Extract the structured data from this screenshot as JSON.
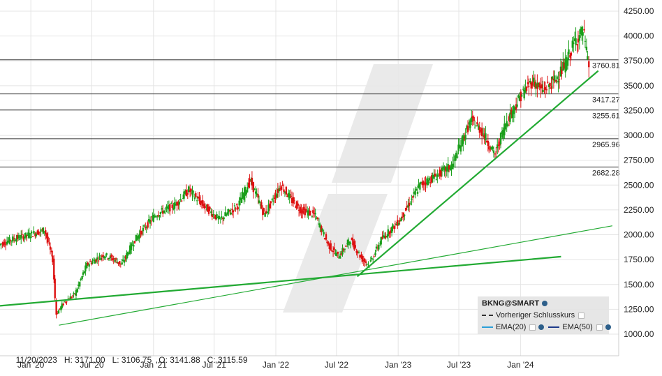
{
  "chart_data": {
    "type": "candlestick",
    "symbol": "BKNG@SMART",
    "x_ticks": [
      "Jan '20",
      "Jul '20",
      "Jan '21",
      "Jul '21",
      "Jan '22",
      "Jul '22",
      "Jan '23",
      "Jul '23",
      "Jan '24"
    ],
    "y_ticks": [
      "4250.00",
      "4000.00",
      "3750.00",
      "3500.00",
      "3250.00",
      "3000.00",
      "2750.00",
      "2500.00",
      "2250.00",
      "2000.00",
      "1750.00",
      "1500.00",
      "1250.00",
      "1000.00"
    ],
    "ylim": [
      900,
      4320
    ],
    "price_path": [
      [
        "2019-10-01",
        1900
      ],
      [
        "2019-11-15",
        1960
      ],
      [
        "2020-01-01",
        2000
      ],
      [
        "2020-02-15",
        2050
      ],
      [
        "2020-03-10",
        1750
      ],
      [
        "2020-03-20",
        1200
      ],
      [
        "2020-04-15",
        1330
      ],
      [
        "2020-05-15",
        1400
      ],
      [
        "2020-06-20",
        1700
      ],
      [
        "2020-08-10",
        1800
      ],
      [
        "2020-09-10",
        1750
      ],
      [
        "2020-10-01",
        1700
      ],
      [
        "2020-11-10",
        1950
      ],
      [
        "2021-01-10",
        2200
      ],
      [
        "2021-03-10",
        2300
      ],
      [
        "2021-04-20",
        2450
      ],
      [
        "2021-06-01",
        2300
      ],
      [
        "2021-07-20",
        2150
      ],
      [
        "2021-09-15",
        2300
      ],
      [
        "2021-10-20",
        2550
      ],
      [
        "2021-12-01",
        2200
      ],
      [
        "2022-01-20",
        2500
      ],
      [
        "2022-02-20",
        2350
      ],
      [
        "2022-03-20",
        2250
      ],
      [
        "2022-05-01",
        2200
      ],
      [
        "2022-06-10",
        1900
      ],
      [
        "2022-07-10",
        1780
      ],
      [
        "2022-08-15",
        1950
      ],
      [
        "2022-09-20",
        1750
      ],
      [
        "2022-10-10",
        1700
      ],
      [
        "2022-11-15",
        1950
      ],
      [
        "2023-01-10",
        2150
      ],
      [
        "2023-03-10",
        2500
      ],
      [
        "2023-05-01",
        2600
      ],
      [
        "2023-06-15",
        2700
      ],
      [
        "2023-07-15",
        2950
      ],
      [
        "2023-08-10",
        3150
      ],
      [
        "2023-09-10",
        3050
      ],
      [
        "2023-10-20",
        2800
      ],
      [
        "2023-11-20",
        3115.59
      ],
      [
        "2024-01-05",
        3400
      ],
      [
        "2024-02-10",
        3550
      ],
      [
        "2024-03-10",
        3450
      ],
      [
        "2024-04-15",
        3550
      ],
      [
        "2024-05-15",
        3700
      ],
      [
        "2024-06-15",
        3950
      ],
      [
        "2024-07-10",
        4050
      ],
      [
        "2024-07-25",
        3700
      ]
    ],
    "horizontal_levels": [
      {
        "value": 3760.81,
        "label": "3760.81"
      },
      {
        "value": 3417.27,
        "label": "3417.27"
      },
      {
        "value": 3255.61,
        "label": "3255.61"
      },
      {
        "value": 2965.96,
        "label": "2965.96"
      },
      {
        "value": 2682.28,
        "label": "2682.28"
      }
    ],
    "trend_lines": [
      {
        "from": [
          "2019-10-01",
          1285
        ],
        "to": [
          "2024-05-01",
          1780
        ],
        "width": 2.2
      },
      {
        "from": [
          "2020-03-25",
          1090
        ],
        "to": [
          "2024-10-01",
          2090
        ],
        "width": 1.2
      },
      {
        "from": [
          "2022-09-01",
          1580
        ],
        "to": [
          "2024-08-20",
          3650
        ],
        "width": 2.2
      }
    ],
    "colors": {
      "up": "#1a9e1a",
      "down": "#dd1111",
      "trend": "#22aa33",
      "levels": "#333333",
      "grid": "#e4e4e4"
    },
    "info": {
      "date": "11/20/2023",
      "high": "H: 3171.00",
      "low": "L: 3106.75",
      "open": "O: 3141.88",
      "close": "C: 3115.59"
    }
  },
  "legend": {
    "title": "BKNG@SMART",
    "prev_close": "Vorheriger Schlusskurs",
    "ema20": "EMA(20)",
    "ema50": "EMA(50)"
  }
}
